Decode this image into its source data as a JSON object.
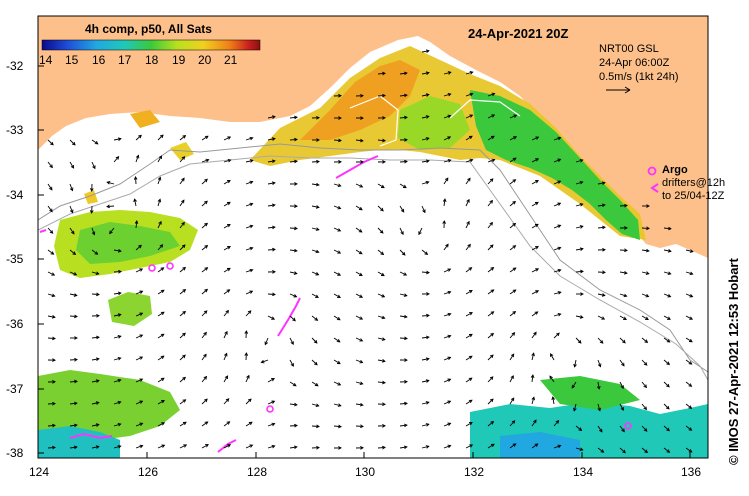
{
  "map": {
    "title": "24-Apr-2021 20Z",
    "credit": "© IMOS 27-Apr-2021 12:53 Hobart",
    "colorbar": {
      "label": "4h comp, p50, All Sats",
      "ticks": [
        "14",
        "15",
        "16",
        "17",
        "18",
        "19",
        "20",
        "21"
      ],
      "colors": [
        "#0a0a8c",
        "#1f4fd8",
        "#22a8e0",
        "#20c8b8",
        "#3cc83c",
        "#b8e020",
        "#f0d020",
        "#f08018",
        "#c81e1e",
        "#8c1010"
      ]
    },
    "current_legend": {
      "line1": "NRT00 GSL",
      "line2": "24-Apr 06:00Z",
      "line3": "0.5m/s (1kt 24h)"
    },
    "argo_legend": {
      "argo_label": "Argo",
      "drifters_label": "drifters@12h",
      "drifters_label2": "to 25/04-12Z"
    },
    "axes": {
      "lat_labels": [
        "-32",
        "-33",
        "-34",
        "-35",
        "-36",
        "-37",
        "-38"
      ],
      "lon_labels": [
        "124",
        "126",
        "128",
        "130",
        "132",
        "134",
        "136"
      ]
    },
    "colors": {
      "land": "#fdc08a",
      "argo": "#ff33ff",
      "ocean": "#ffffff"
    }
  }
}
